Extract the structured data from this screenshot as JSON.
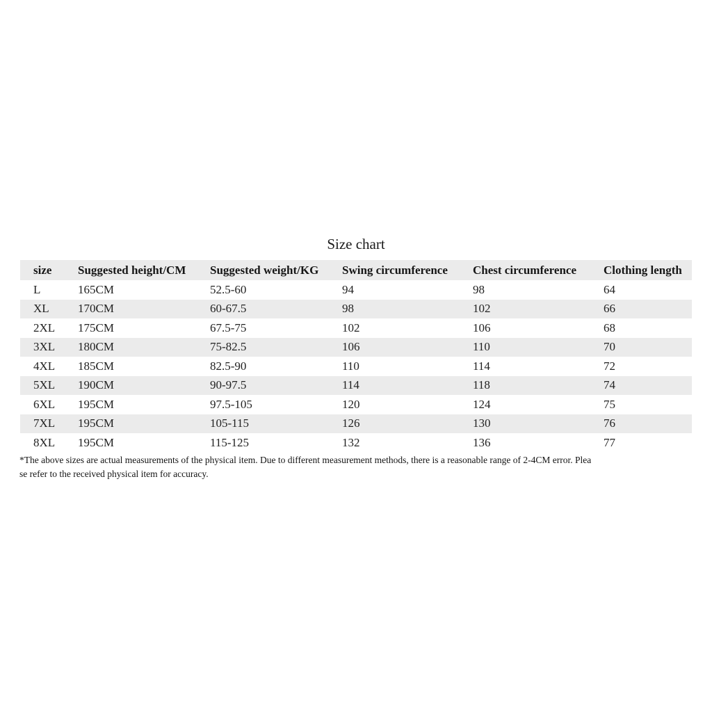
{
  "title": "Size chart",
  "chart_data": {
    "type": "table",
    "title": "Size chart",
    "columns": [
      "size",
      "Suggested height/CM",
      "Suggested weight/KG",
      "Swing circumference",
      "Chest circumference",
      "Clothing length"
    ],
    "rows": [
      [
        "L",
        "165CM",
        "52.5-60",
        "94",
        "98",
        "64"
      ],
      [
        "XL",
        "170CM",
        "60-67.5",
        "98",
        "102",
        "66"
      ],
      [
        "2XL",
        "175CM",
        "67.5-75",
        "102",
        "106",
        "68"
      ],
      [
        "3XL",
        "180CM",
        "75-82.5",
        "106",
        "110",
        "70"
      ],
      [
        "4XL",
        "185CM",
        "82.5-90",
        "110",
        "114",
        "72"
      ],
      [
        "5XL",
        "190CM",
        "90-97.5",
        "114",
        "118",
        "74"
      ],
      [
        "6XL",
        "195CM",
        "97.5-105",
        "120",
        "124",
        "75"
      ],
      [
        "7XL",
        "195CM",
        "105-115",
        "126",
        "130",
        "76"
      ],
      [
        "8XL",
        "195CM",
        "115-125",
        "132",
        "136",
        "77"
      ]
    ],
    "layout": {
      "header_background": "#ebebeb",
      "stripe_background": "#ebebeb",
      "stripe_rows": [
        "XL",
        "3XL",
        "5XL",
        "7XL"
      ],
      "grid": "none"
    }
  },
  "note": {
    "lines": [
      "*The above sizes are actual measurements of the physical item. Due to different measurement methods, there is a reasonable range of 2-4CM error. Plea",
      "se refer to the received physical item for accuracy."
    ],
    "full_text": "*The above sizes are actual measurements of the physical item. Due to different measurement methods, there is a reasonable range of 2-4CM error. Please refer to the received physical item for accuracy."
  }
}
